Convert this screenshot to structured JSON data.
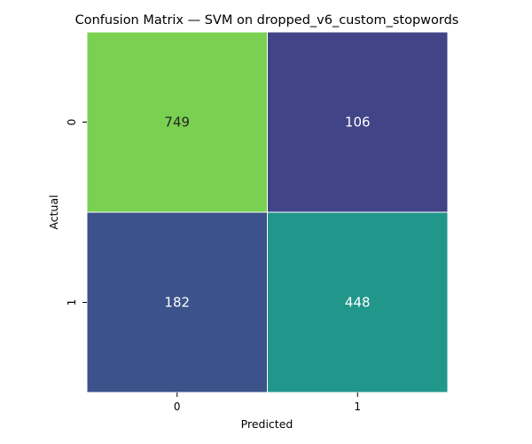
{
  "chart_data": {
    "type": "heatmap",
    "title": "Confusion Matrix — SVM on dropped_v6_custom_stopwords",
    "xlabel": "Predicted",
    "ylabel": "Actual",
    "x_categories": [
      "0",
      "1"
    ],
    "y_categories": [
      "0",
      "1"
    ],
    "values": [
      [
        749,
        106
      ],
      [
        182,
        448
      ]
    ],
    "colormap": "viridis",
    "colorbar": false,
    "annotations": true,
    "cell_colors": [
      [
        "#7ad151",
        "#414487"
      ],
      [
        "#3b528b",
        "#21968b"
      ]
    ],
    "annotation_colors": [
      [
        "#262626",
        "#ffffff"
      ],
      [
        "#ffffff",
        "#ffffff"
      ]
    ]
  }
}
